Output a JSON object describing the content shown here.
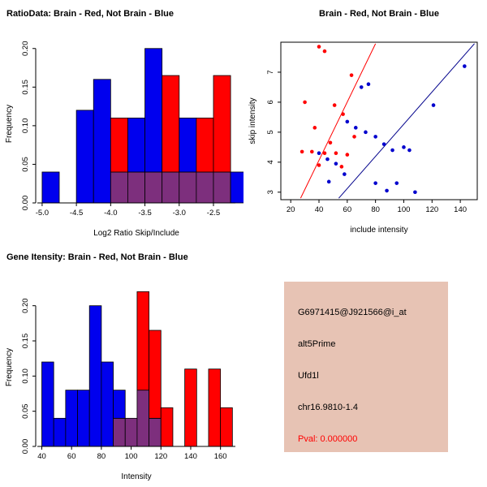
{
  "page": {
    "background": "#ffffff"
  },
  "info_box": {
    "bg_color": "#e7c3b4",
    "lines": [
      {
        "name": "probe-id",
        "text": "G6971415@J921566@i_at",
        "color": "#000000"
      },
      {
        "name": "event-type",
        "text": "alt5Prime",
        "color": "#000000"
      },
      {
        "name": "gene-symbol",
        "text": "Ufd1l",
        "color": "#000000"
      },
      {
        "name": "locus",
        "text": "chr16.9810-1.4",
        "color": "#000000"
      },
      {
        "name": "pval",
        "text": "Pval: 0.000000",
        "color": "#ff0000"
      }
    ]
  },
  "chart_data": [
    {
      "id": "ratio-hist",
      "type": "bar",
      "subtype": "overlaid-histogram",
      "title": "RatioData: Brain - Red, Not Brain - Blue",
      "xlabel": "Log2 Ratio Skip/Include",
      "ylabel": "Frequency",
      "legend": {
        "Brain": "red",
        "Not Brain": "blue"
      },
      "xlim": [
        -5.07,
        -2.18
      ],
      "ylim": [
        0,
        0.205
      ],
      "xticks": [
        -5.0,
        -4.5,
        -4.0,
        -3.5,
        -3.0,
        -2.5
      ],
      "xtick_labels": [
        "-5.0",
        "-4.5",
        "-4.0",
        "-3.5",
        "-3.0",
        "-2.5"
      ],
      "yticks": [
        0,
        0.05,
        0.1,
        0.15,
        0.2
      ],
      "ytick_labels": [
        "0.00",
        "0.05",
        "0.10",
        "0.15",
        "0.20"
      ],
      "binwidth": 0.25,
      "colors": {
        "blue": "#0000ee",
        "red": "#ff0000",
        "overlap": "#7d2f7d"
      },
      "bins": [
        {
          "x": -5.0,
          "blue": 0.04,
          "red": 0
        },
        {
          "x": -4.75,
          "blue": 0,
          "red": 0
        },
        {
          "x": -4.5,
          "blue": 0.12,
          "red": 0
        },
        {
          "x": -4.25,
          "blue": 0.16,
          "red": 0
        },
        {
          "x": -4.0,
          "blue": 0.04,
          "red": 0.11
        },
        {
          "x": -3.75,
          "blue": 0.11,
          "red": 0.04
        },
        {
          "x": -3.5,
          "blue": 0.2,
          "red": 0.04
        },
        {
          "x": -3.25,
          "blue": 0.04,
          "red": 0.165
        },
        {
          "x": -3.0,
          "blue": 0.11,
          "red": 0.04
        },
        {
          "x": -2.75,
          "blue": 0.04,
          "red": 0.11
        },
        {
          "x": -2.5,
          "blue": 0.04,
          "red": 0.165
        },
        {
          "x": -2.25,
          "blue": 0.04,
          "red": 0
        }
      ]
    },
    {
      "id": "scatter",
      "type": "scatter",
      "title": "Brain - Red, Not Brain - Blue",
      "xlabel": "include intensity",
      "ylabel": "skip intensity",
      "xlim": [
        13,
        152
      ],
      "ylim": [
        2.75,
        8.0
      ],
      "xticks": [
        20,
        40,
        60,
        80,
        100,
        120,
        140
      ],
      "xtick_labels": [
        "20",
        "40",
        "60",
        "80",
        "100",
        "120",
        "140"
      ],
      "yticks": [
        3,
        4,
        5,
        6,
        7
      ],
      "ytick_labels": [
        "3",
        "4",
        "5",
        "6",
        "7"
      ],
      "series": [
        {
          "name": "brain",
          "color": "#ff0000",
          "points": [
            [
              40,
              7.85
            ],
            [
              44,
              7.7
            ],
            [
              63,
              6.9
            ],
            [
              30,
              6.0
            ],
            [
              51,
              5.9
            ],
            [
              57,
              5.6
            ],
            [
              37,
              5.15
            ],
            [
              48,
              4.65
            ],
            [
              28,
              4.35
            ],
            [
              35,
              4.35
            ],
            [
              44,
              4.3
            ],
            [
              52,
              4.3
            ],
            [
              60,
              4.25
            ],
            [
              65,
              4.85
            ],
            [
              40,
              3.9
            ],
            [
              56,
              3.85
            ]
          ]
        },
        {
          "name": "not-brain",
          "color": "#0000cd",
          "points": [
            [
              143,
              7.2
            ],
            [
              121,
              5.9
            ],
            [
              75,
              6.6
            ],
            [
              70,
              6.5
            ],
            [
              60,
              5.35
            ],
            [
              66,
              5.15
            ],
            [
              73,
              5.0
            ],
            [
              80,
              4.85
            ],
            [
              86,
              4.6
            ],
            [
              92,
              4.4
            ],
            [
              100,
              4.5
            ],
            [
              104,
              4.4
            ],
            [
              40,
              4.3
            ],
            [
              46,
              4.1
            ],
            [
              52,
              3.95
            ],
            [
              58,
              3.6
            ],
            [
              47,
              3.35
            ],
            [
              80,
              3.3
            ],
            [
              95,
              3.3
            ],
            [
              88,
              3.05
            ],
            [
              108,
              3.0
            ]
          ]
        }
      ],
      "lines": [
        {
          "name": "brain-fit",
          "color": "#ff0000",
          "x1": 27,
          "y1": 2.8,
          "x2": 80,
          "y2": 7.95
        },
        {
          "name": "not-brain-fit",
          "color": "#00008b",
          "x1": 54,
          "y1": 2.8,
          "x2": 150,
          "y2": 7.95
        }
      ]
    },
    {
      "id": "gene-hist",
      "type": "bar",
      "subtype": "overlaid-histogram",
      "title": "Gene Itensity: Brain - Red, Not Brain - Blue",
      "xlabel": "Intensity",
      "ylabel": "Frequency",
      "legend": {
        "Brain": "red",
        "Not Brain": "blue"
      },
      "xlim": [
        37,
        170
      ],
      "ylim": [
        0,
        0.225
      ],
      "xticks": [
        40,
        60,
        80,
        100,
        120,
        140,
        160
      ],
      "xtick_labels": [
        "40",
        "60",
        "80",
        "100",
        "120",
        "140",
        "160"
      ],
      "yticks": [
        0,
        0.05,
        0.1,
        0.15,
        0.2
      ],
      "ytick_labels": [
        "0.00",
        "0.05",
        "0.10",
        "0.15",
        "0.20"
      ],
      "binwidth": 8,
      "colors": {
        "blue": "#0000ee",
        "red": "#ff0000",
        "overlap": "#7d2f7d"
      },
      "bins": [
        {
          "x": 40,
          "blue": 0.12,
          "red": 0
        },
        {
          "x": 48,
          "blue": 0.04,
          "red": 0
        },
        {
          "x": 56,
          "blue": 0.08,
          "red": 0
        },
        {
          "x": 64,
          "blue": 0.08,
          "red": 0
        },
        {
          "x": 72,
          "blue": 0.2,
          "red": 0
        },
        {
          "x": 80,
          "blue": 0.12,
          "red": 0
        },
        {
          "x": 88,
          "blue": 0.08,
          "red": 0.04
        },
        {
          "x": 96,
          "blue": 0.04,
          "red": 0.04
        },
        {
          "x": 104,
          "blue": 0.08,
          "red": 0.22
        },
        {
          "x": 112,
          "blue": 0.04,
          "red": 0.165
        },
        {
          "x": 120,
          "blue": 0,
          "red": 0.055
        },
        {
          "x": 128,
          "blue": 0,
          "red": 0
        },
        {
          "x": 136,
          "blue": 0,
          "red": 0.11
        },
        {
          "x": 144,
          "blue": 0,
          "red": 0
        },
        {
          "x": 152,
          "blue": 0,
          "red": 0.11
        },
        {
          "x": 160,
          "blue": 0,
          "red": 0.055
        }
      ]
    }
  ]
}
